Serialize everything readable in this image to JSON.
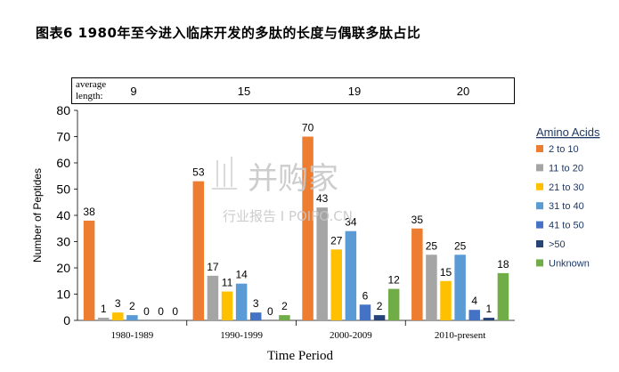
{
  "title": "图表6 1980年至今进入临床开发的多肽的长度与偶联多肽占比",
  "average_length": {
    "label_line1": "average",
    "label_line2": "length:",
    "values": [
      "9",
      "15",
      "19",
      "20"
    ]
  },
  "watermark": {
    "main": "并购家",
    "sub": "行业报告 I POIPO.CN"
  },
  "colors": {
    "2 to 10": "#ED7D31",
    "11 to 20": "#A5A5A5",
    "21 to 30": "#FFC000",
    "31 to 40": "#5B9BD5",
    "41 to 50": "#4472C4",
    ">50": "#264478",
    "Unknown": "#70AD47"
  },
  "chart_data": {
    "type": "bar",
    "title": "",
    "xlabel": "Time Period",
    "ylabel": "Number of Peptides",
    "ylim": [
      0,
      80
    ],
    "yticks": [
      0,
      10,
      20,
      30,
      40,
      50,
      60,
      70,
      80
    ],
    "grid": false,
    "legend_title": "Amino Acids",
    "legend_position": "right",
    "categories": [
      "1980-1989",
      "1990-1999",
      "2000-2009",
      "2010-present"
    ],
    "series": [
      {
        "name": "2 to 10",
        "values": [
          38,
          53,
          70,
          35
        ]
      },
      {
        "name": "11 to 20",
        "values": [
          1,
          17,
          43,
          25
        ]
      },
      {
        "name": "21 to 30",
        "values": [
          3,
          11,
          27,
          15
        ]
      },
      {
        "name": "31 to 40",
        "values": [
          2,
          14,
          34,
          25
        ]
      },
      {
        "name": "41 to 50",
        "values": [
          0,
          3,
          6,
          4
        ]
      },
      {
        "name": ">50",
        "values": [
          0,
          0,
          2,
          1
        ]
      },
      {
        "name": "Unknown",
        "values": [
          0,
          2,
          12,
          18
        ]
      }
    ]
  }
}
